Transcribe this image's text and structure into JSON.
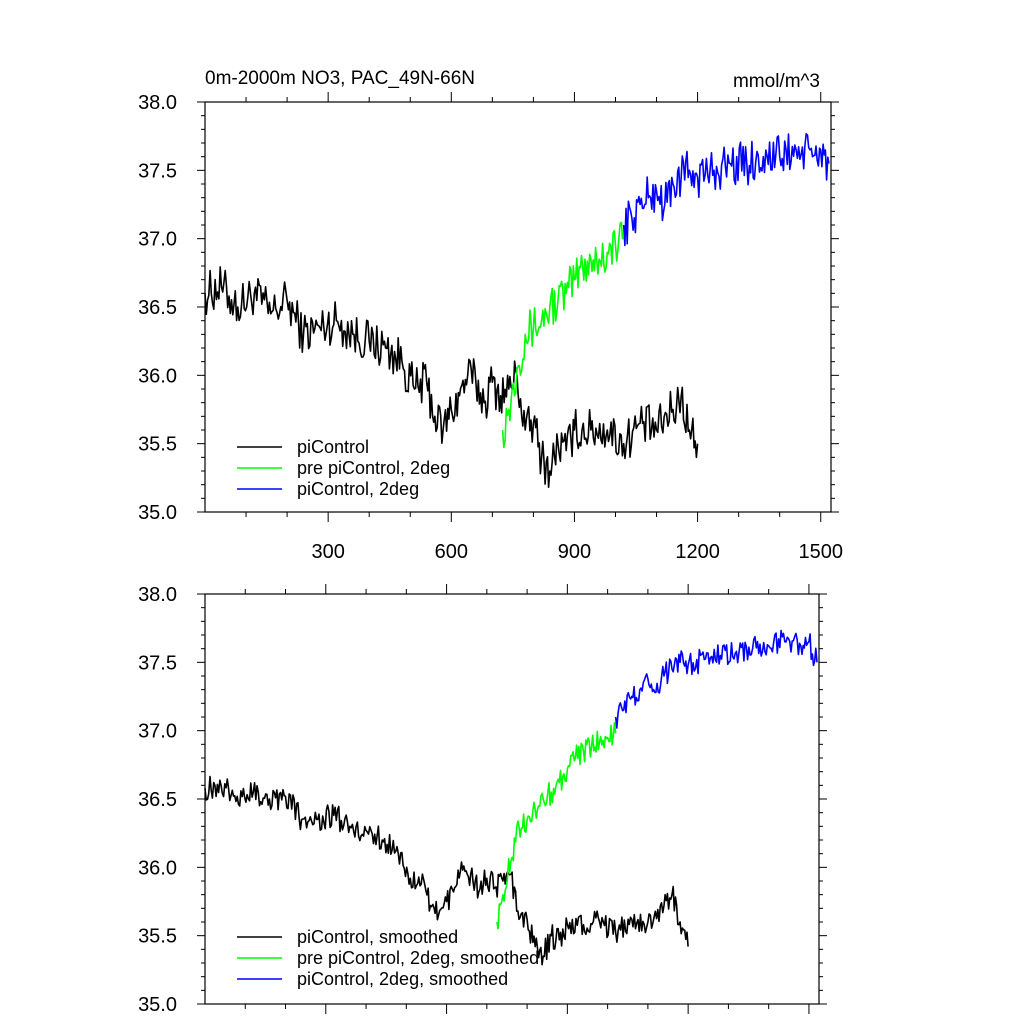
{
  "chart_data": [
    {
      "type": "line",
      "title": "0m-2000m NO3, PAC_49N-66N",
      "units_label": "mmol/m^3",
      "xlim": [
        0,
        1525
      ],
      "ylim": [
        35.0,
        38.0
      ],
      "x_ticks": [
        300,
        600,
        900,
        1200,
        1500
      ],
      "x_tick_labels": [
        "300",
        "600",
        "900",
        "1200",
        "1500"
      ],
      "y_ticks": [
        35.0,
        35.5,
        36.0,
        36.5,
        37.0,
        37.5,
        38.0
      ],
      "y_tick_labels": [
        "35.0",
        "35.5",
        "36.0",
        "36.5",
        "37.0",
        "37.5",
        "38.0"
      ],
      "legend_position": "bottom-left",
      "series": [
        {
          "name": "piControl",
          "color": "#000000",
          "x": [
            0,
            40,
            80,
            120,
            160,
            200,
            240,
            280,
            320,
            360,
            400,
            440,
            480,
            510,
            540,
            560,
            580,
            600,
            620,
            640,
            660,
            680,
            700,
            720,
            740,
            760,
            780,
            800,
            820,
            840,
            860,
            880,
            900,
            940,
            980,
            1020,
            1060,
            1100,
            1140,
            1160,
            1180,
            1200
          ],
          "y": [
            36.6,
            36.65,
            36.5,
            36.6,
            36.45,
            36.55,
            36.3,
            36.35,
            36.4,
            36.3,
            36.25,
            36.2,
            36.1,
            35.9,
            35.95,
            35.7,
            35.6,
            35.75,
            35.85,
            36.0,
            35.95,
            35.8,
            35.95,
            35.85,
            35.9,
            36.0,
            35.6,
            35.65,
            35.4,
            35.3,
            35.5,
            35.45,
            35.6,
            35.6,
            35.6,
            35.5,
            35.65,
            35.6,
            35.75,
            35.85,
            35.6,
            35.5
          ]
        },
        {
          "name": "pre piControl, 2deg",
          "color": "#00ff00",
          "x": [
            725,
            740,
            760,
            780,
            800,
            820,
            840,
            860,
            880,
            900,
            920,
            940,
            960,
            980,
            1000,
            1020
          ],
          "y": [
            35.6,
            35.75,
            36.05,
            36.3,
            36.35,
            36.4,
            36.5,
            36.55,
            36.6,
            36.7,
            36.8,
            36.85,
            36.85,
            36.9,
            36.95,
            37.0
          ]
        },
        {
          "name": "piControl, 2deg",
          "color": "#0000ff",
          "x": [
            1020,
            1040,
            1060,
            1080,
            1100,
            1120,
            1140,
            1160,
            1180,
            1200,
            1240,
            1280,
            1320,
            1360,
            1400,
            1440,
            1480,
            1500,
            1520
          ],
          "y": [
            37.1,
            37.15,
            37.25,
            37.3,
            37.35,
            37.25,
            37.4,
            37.45,
            37.5,
            37.45,
            37.5,
            37.55,
            37.55,
            37.6,
            37.6,
            37.65,
            37.6,
            37.65,
            37.55
          ]
        }
      ]
    },
    {
      "type": "line",
      "xlim": [
        0,
        1525
      ],
      "ylim": [
        35.0,
        38.0
      ],
      "x_ticks": [
        300,
        600,
        900,
        1200,
        1500
      ],
      "y_ticks": [
        35.0,
        35.5,
        36.0,
        36.5,
        37.0,
        37.5,
        38.0
      ],
      "y_tick_labels": [
        "35.0",
        "35.5",
        "36.0",
        "36.5",
        "37.0",
        "37.5",
        "38.0"
      ],
      "legend_position": "bottom-left",
      "series": [
        {
          "name": "piControl, smoothed",
          "color": "#000000",
          "x": [
            0,
            40,
            80,
            120,
            160,
            200,
            240,
            280,
            320,
            360,
            400,
            440,
            480,
            510,
            540,
            560,
            580,
            600,
            620,
            640,
            660,
            680,
            700,
            720,
            740,
            760,
            780,
            800,
            820,
            840,
            860,
            880,
            900,
            940,
            980,
            1020,
            1060,
            1100,
            1140,
            1160,
            1180,
            1200
          ],
          "y": [
            36.58,
            36.6,
            36.52,
            36.55,
            36.5,
            36.52,
            36.35,
            36.35,
            36.38,
            36.3,
            36.27,
            36.2,
            36.1,
            35.92,
            35.95,
            35.72,
            35.65,
            35.75,
            35.85,
            35.98,
            35.95,
            35.82,
            35.92,
            35.85,
            35.9,
            35.95,
            35.62,
            35.62,
            35.42,
            35.35,
            35.5,
            35.47,
            35.58,
            35.58,
            35.6,
            35.52,
            35.62,
            35.6,
            35.72,
            35.8,
            35.6,
            35.42
          ]
        },
        {
          "name": "pre piControl, 2deg, smoothed",
          "color": "#00ff00",
          "x": [
            725,
            740,
            760,
            780,
            800,
            820,
            840,
            860,
            880,
            900,
            920,
            940,
            960,
            980,
            1000,
            1020
          ],
          "y": [
            35.6,
            35.8,
            36.05,
            36.3,
            36.35,
            36.42,
            36.5,
            36.55,
            36.62,
            36.72,
            36.8,
            36.85,
            36.88,
            36.92,
            36.95,
            36.98
          ]
        },
        {
          "name": "piControl, 2deg, smoothed",
          "color": "#0000ff",
          "x": [
            1020,
            1040,
            1060,
            1080,
            1100,
            1120,
            1140,
            1160,
            1180,
            1200,
            1240,
            1280,
            1320,
            1360,
            1400,
            1440,
            1480,
            1500,
            1520
          ],
          "y": [
            37.1,
            37.15,
            37.25,
            37.3,
            37.38,
            37.28,
            37.4,
            37.45,
            37.5,
            37.48,
            37.52,
            37.55,
            37.58,
            37.6,
            37.62,
            37.65,
            37.62,
            37.65,
            37.5
          ]
        }
      ]
    }
  ]
}
